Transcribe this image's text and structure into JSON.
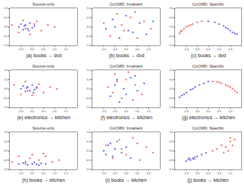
{
  "chart_data": [
    {
      "type": "scatter",
      "title": "Source-only",
      "subtitle": "(a) books → dvd",
      "xlim": [
        -1,
        2
      ],
      "xticks": [
        -0.5,
        {
          "value": 0,
          "label": "0.0"
        },
        0.5,
        {
          "value": 1,
          "label": "1.0"
        },
        1.5
      ],
      "ylim": [
        -1,
        1
      ],
      "yticks": [
        {
          "value": -1,
          "label": "-1.0"
        },
        -0.5,
        {
          "value": 0,
          "label": "0.0"
        },
        0.5,
        {
          "value": 1,
          "label": "1.0"
        }
      ],
      "series": [
        {
          "color": "#e0302a",
          "x": [
            -0.9,
            -0.6,
            -0.4,
            -0.1,
            0.2,
            0.4,
            0.7,
            1.0,
            -0.3,
            0.1
          ],
          "y": [
            0.1,
            -0.3,
            0.35,
            -0.4,
            0.3,
            -0.2,
            0.1,
            0.0,
            -0.1,
            0.15
          ]
        },
        {
          "color": "#2a2ae0",
          "x": [
            -0.6,
            -0.5,
            -0.4,
            -0.3,
            -0.2,
            -0.1,
            0.0,
            0.1,
            -0.35,
            -0.15
          ],
          "y": [
            0.0,
            0.15,
            -0.15,
            0.1,
            -0.1,
            0.2,
            -0.05,
            0.05,
            0.05,
            -0.2
          ]
        }
      ]
    },
    {
      "type": "scatter",
      "title": "CoCMD: Invariant",
      "subtitle": "(b) books → dvd",
      "xlim": [
        -1.5,
        1.5
      ],
      "xticks": [
        {
          "value": -1,
          "label": "-1.0"
        },
        -0.5,
        {
          "value": 0,
          "label": "0.0"
        },
        0.5,
        {
          "value": 1,
          "label": "1.0"
        }
      ],
      "ylim": [
        -1,
        1
      ],
      "yticks": [
        {
          "value": -1,
          "label": "-1.0"
        },
        -0.5,
        {
          "value": 0,
          "label": "0.0"
        },
        0.5,
        {
          "value": 1,
          "label": "1.0"
        }
      ],
      "series": [
        {
          "color": "#e0302a",
          "x": [
            -1.0,
            -0.7,
            -0.4,
            -0.1,
            0.2,
            0.5,
            0.8,
            1.1,
            -0.2,
            0.4
          ],
          "y": [
            0.2,
            -0.5,
            0.7,
            -0.2,
            0.5,
            -0.6,
            0.3,
            -0.1,
            0.1,
            0.8
          ]
        },
        {
          "color": "#2a2ae0",
          "x": [
            -0.9,
            -0.6,
            -0.3,
            0.0,
            0.3,
            0.6,
            0.9,
            1.2,
            -0.5,
            0.1
          ],
          "y": [
            -0.1,
            0.4,
            -0.6,
            0.6,
            -0.3,
            0.2,
            -0.4,
            0.3,
            0.0,
            -0.2
          ]
        }
      ]
    },
    {
      "type": "scatter",
      "title": "CoCMD: Specific",
      "subtitle": "(c) books → dvd",
      "xlim": [
        -1.5,
        1.5
      ],
      "xticks": [
        {
          "value": -1,
          "label": "-1.0"
        },
        -0.5,
        {
          "value": 0,
          "label": "0.0"
        },
        0.5,
        {
          "value": 1,
          "label": "1.0"
        }
      ],
      "ylim": [
        -1,
        1
      ],
      "yticks": [
        {
          "value": -1,
          "label": "-1.0"
        },
        -0.5,
        {
          "value": 0,
          "label": "0.0"
        },
        0.5,
        {
          "value": 1,
          "label": "1.0"
        }
      ],
      "series": [
        {
          "color": "#e0302a",
          "x": [
            -1.3,
            -1.2,
            -1.1,
            -1.0,
            -0.9,
            -0.7,
            -0.5,
            -0.3,
            -1.25,
            -0.8
          ],
          "y": [
            -0.35,
            -0.2,
            -0.1,
            0.0,
            0.05,
            0.15,
            0.25,
            0.3,
            -0.25,
            0.1
          ]
        },
        {
          "color": "#2a2ae0",
          "x": [
            0.0,
            0.3,
            0.5,
            0.7,
            0.9,
            1.0,
            1.1,
            1.2,
            1.3,
            0.8
          ],
          "y": [
            0.3,
            0.25,
            0.15,
            0.05,
            -0.1,
            -0.2,
            -0.3,
            -0.35,
            -0.4,
            -0.05
          ]
        }
      ]
    },
    {
      "type": "scatter",
      "title": "Source-only",
      "subtitle": "(e) electronics → kitchen",
      "xlim": [
        -1,
        2
      ],
      "xticks": [
        -0.5,
        {
          "value": 0,
          "label": "0.0"
        },
        0.5,
        {
          "value": 1,
          "label": "1.0"
        },
        1.5
      ],
      "ylim": [
        -1,
        1
      ],
      "yticks": [
        {
          "value": -1,
          "label": "-1.0"
        },
        -0.5,
        {
          "value": 0,
          "label": "0.0"
        },
        0.5,
        {
          "value": 1,
          "label": "1.0"
        }
      ],
      "series": [
        {
          "color": "#e0302a",
          "x": [
            -0.8,
            -0.5,
            -0.3,
            0.0,
            0.3,
            0.5,
            0.8,
            1.1,
            -0.2,
            0.2
          ],
          "y": [
            0.2,
            -0.3,
            0.4,
            -0.35,
            0.25,
            -0.2,
            0.1,
            0.0,
            -0.1,
            0.1
          ]
        },
        {
          "color": "#2a2ae0",
          "x": [
            -0.5,
            -0.4,
            -0.3,
            -0.2,
            -0.1,
            0.0,
            0.1,
            0.2,
            -0.25,
            0.05
          ],
          "y": [
            0.0,
            0.15,
            -0.15,
            0.1,
            -0.1,
            0.2,
            -0.05,
            0.05,
            0.05,
            -0.2
          ]
        }
      ]
    },
    {
      "type": "scatter",
      "title": "CoCMD: Invariant",
      "subtitle": "(f) electronics → kitchen",
      "xlim": [
        -1.5,
        1.5
      ],
      "xticks": [
        {
          "value": -1,
          "label": "-1.0"
        },
        -0.5,
        {
          "value": 0,
          "label": "0.0"
        },
        0.5,
        {
          "value": 1,
          "label": "1.0"
        }
      ],
      "ylim": [
        -1,
        1
      ],
      "yticks": [
        {
          "value": -1,
          "label": "-1.0"
        },
        -0.5,
        {
          "value": 0,
          "label": "0.0"
        },
        0.5,
        {
          "value": 1,
          "label": "1.0"
        }
      ],
      "series": [
        {
          "color": "#e0302a",
          "x": [
            -0.8,
            -0.5,
            -0.2,
            0.1,
            0.4,
            0.7,
            -0.4,
            0.3,
            0.0,
            -0.6
          ],
          "y": [
            0.1,
            0.8,
            -0.5,
            0.9,
            0.2,
            -0.3,
            0.4,
            -0.6,
            0.5,
            -0.2
          ]
        },
        {
          "color": "#2a2ae0",
          "x": [
            -0.7,
            -0.4,
            -0.1,
            0.2,
            0.5,
            0.8,
            -0.3,
            0.4,
            0.0,
            -0.5
          ],
          "y": [
            -0.4,
            0.5,
            0.0,
            0.6,
            -0.1,
            0.3,
            -0.7,
            0.7,
            -0.3,
            0.2
          ]
        }
      ]
    },
    {
      "type": "scatter",
      "title": "CoCMD: Specific",
      "subtitle": "(g) electronics → kitchen",
      "xlim": [
        -1.5,
        1.5
      ],
      "xticks": [
        {
          "value": -1,
          "label": "-1.0"
        },
        -0.5,
        {
          "value": 0,
          "label": "0.0"
        },
        0.5,
        {
          "value": 1,
          "label": "1.0"
        }
      ],
      "ylim": [
        -1,
        1
      ],
      "yticks": [
        {
          "value": -1,
          "label": "-1.0"
        },
        -0.5,
        {
          "value": 0,
          "label": "0.0"
        },
        0.5,
        {
          "value": 1,
          "label": "1.0"
        }
      ],
      "series": [
        {
          "color": "#2a2ae0",
          "x": [
            -1.3,
            -1.2,
            -1.0,
            -0.8,
            -0.6,
            -0.4,
            -0.2,
            0.0,
            -1.1,
            -0.7
          ],
          "y": [
            -0.45,
            -0.35,
            -0.2,
            -0.05,
            0.1,
            0.2,
            0.3,
            0.4,
            -0.3,
            0.0
          ]
        },
        {
          "color": "#e0302a",
          "x": [
            0.2,
            0.4,
            0.6,
            0.8,
            1.0,
            1.1,
            1.2,
            1.3,
            0.5,
            0.9
          ],
          "y": [
            0.4,
            0.38,
            0.3,
            0.2,
            0.1,
            0.0,
            -0.1,
            -0.2,
            0.35,
            0.15
          ]
        }
      ]
    },
    {
      "type": "scatter",
      "title": "Source-only",
      "subtitle": "(h) books → kitchen",
      "xlim": [
        -1,
        2
      ],
      "xticks": [
        -0.5,
        {
          "value": 0,
          "label": "0.0"
        },
        0.5,
        {
          "value": 1,
          "label": "1.0"
        },
        1.5
      ],
      "ylim": [
        -1,
        1
      ],
      "yticks": [
        {
          "value": -1,
          "label": "-1.0"
        },
        -0.5,
        {
          "value": 0,
          "label": "0.0"
        },
        0.5,
        {
          "value": 1,
          "label": "1.0"
        }
      ],
      "series": [
        {
          "color": "#e0302a",
          "x": [
            -0.9,
            -0.6,
            -0.3,
            0.0,
            0.3,
            0.6,
            0.9,
            1.2,
            -0.1,
            0.5
          ],
          "y": [
            -0.6,
            -0.3,
            -0.7,
            -0.2,
            -0.5,
            -0.3,
            -0.6,
            -0.5,
            -0.4,
            -0.15
          ]
        },
        {
          "color": "#2a2ae0",
          "x": [
            -0.6,
            -0.4,
            -0.2,
            0.0,
            0.2,
            0.4,
            0.6,
            -0.3,
            0.1,
            0.3
          ],
          "y": [
            -0.7,
            -0.65,
            -0.75,
            -0.7,
            -0.72,
            -0.68,
            -0.7,
            -0.6,
            -0.62,
            -0.78
          ]
        }
      ]
    },
    {
      "type": "scatter",
      "title": "CoCMD: Invariant",
      "subtitle": "(i) books → kitchen",
      "xlim": [
        -1.5,
        1.5
      ],
      "xticks": [
        {
          "value": -1,
          "label": "-1.0"
        },
        -0.5,
        {
          "value": 0,
          "label": "0.0"
        },
        0.5,
        {
          "value": 1,
          "label": "1.0"
        }
      ],
      "ylim": [
        -1,
        1
      ],
      "yticks": [
        {
          "value": -1,
          "label": "-1.0"
        },
        -0.5,
        {
          "value": 0,
          "label": "0.0"
        },
        0.5,
        {
          "value": 1,
          "label": "1.0"
        }
      ],
      "series": [
        {
          "color": "#e0302a",
          "x": [
            -0.9,
            -0.6,
            -0.3,
            0.0,
            0.3,
            0.6,
            0.9,
            1.2,
            0.5,
            -0.2
          ],
          "y": [
            0.3,
            -0.4,
            0.6,
            -0.2,
            0.7,
            -0.5,
            0.2,
            -0.1,
            0.4,
            0.1
          ]
        },
        {
          "color": "#2a2ae0",
          "x": [
            -1.0,
            -0.8,
            -0.6,
            -0.4,
            -0.2,
            0.0,
            0.2,
            -0.9,
            -0.5,
            -0.7
          ],
          "y": [
            0.0,
            0.3,
            -0.3,
            0.5,
            -0.1,
            0.2,
            -0.4,
            -0.2,
            0.1,
            0.4
          ]
        }
      ]
    },
    {
      "type": "scatter",
      "title": "CoCMD: Specific",
      "subtitle": "(j) books → kitchen",
      "xlim": [
        -1.5,
        1.5
      ],
      "xticks": [
        {
          "value": -1,
          "label": "-1.0"
        },
        -0.5,
        {
          "value": 0,
          "label": "0.0"
        },
        0.5,
        {
          "value": 1,
          "label": "1.0"
        }
      ],
      "ylim": [
        -1,
        1
      ],
      "yticks": [
        {
          "value": -1,
          "label": "-1.0"
        },
        -0.5,
        {
          "value": 0,
          "label": "0.0"
        },
        0.5,
        {
          "value": 1,
          "label": "1.0"
        }
      ],
      "series": [
        {
          "color": "#2a2ae0",
          "x": [
            -1.0,
            -0.9,
            -0.8,
            -0.7,
            -0.6,
            -0.5,
            -0.3,
            -0.1,
            -0.85,
            -0.65
          ],
          "y": [
            -0.55,
            -0.45,
            -0.5,
            -0.4,
            -0.35,
            -0.3,
            -0.2,
            -0.1,
            -0.4,
            -0.45
          ]
        },
        {
          "color": "#e0302a",
          "x": [
            0.2,
            0.4,
            0.6,
            0.8,
            1.0,
            1.1,
            1.2,
            0.7,
            0.9,
            1.0
          ],
          "y": [
            0.0,
            0.1,
            0.3,
            0.2,
            0.5,
            0.3,
            0.6,
            -0.1,
            0.0,
            0.7
          ]
        }
      ]
    }
  ]
}
